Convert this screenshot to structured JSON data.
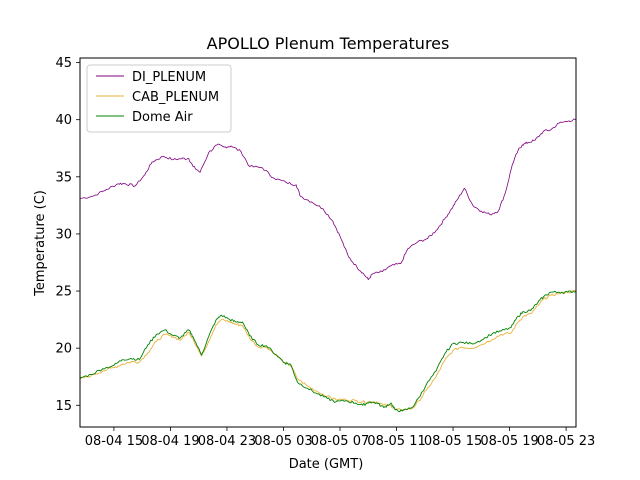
{
  "chart_data": {
    "type": "line",
    "title": "APOLLO Plenum Temperatures",
    "xlabel": "Date (GMT)",
    "ylabel": "Temperature (C)",
    "xlim": [
      12.6,
      47.7
    ],
    "ylim": [
      13.1,
      45.4
    ],
    "grid": false,
    "legend_position": "top-left",
    "x_unit": "hours since 08-04 00:00 GMT",
    "x_ticks": [
      15,
      19,
      23,
      27,
      31,
      35,
      39,
      43,
      47
    ],
    "x_tick_labels": [
      "08-04 15",
      "08-04 19",
      "08-04 23",
      "08-05 03",
      "08-05 07",
      "08-05 11",
      "08-05 15",
      "08-05 19",
      "08-05 23"
    ],
    "y_ticks": [
      15,
      20,
      25,
      30,
      35,
      40,
      45
    ],
    "y_tick_labels": [
      "15",
      "20",
      "25",
      "30",
      "35",
      "40",
      "45"
    ],
    "series": [
      {
        "name": "DI_PLENUM",
        "color": "#800080",
        "x": [
          12.6,
          13.5,
          14.5,
          15.3,
          15.8,
          16.5,
          17.2,
          17.7,
          18.5,
          19.2,
          19.8,
          20.3,
          20.6,
          21.1,
          21.7,
          22.3,
          22.8,
          23.3,
          24.0,
          24.6,
          25.5,
          26.3,
          27.2,
          27.9,
          28.2,
          29.0,
          29.8,
          30.5,
          31.0,
          31.6,
          32.2,
          32.6,
          33.0,
          33.3,
          34.0,
          34.6,
          35.3,
          35.8,
          36.5,
          37.2,
          37.8,
          38.4,
          38.9,
          39.3,
          39.8,
          40.4,
          41.0,
          41.6,
          42.2,
          42.7,
          43.2,
          43.6,
          43.9,
          44.3,
          44.8,
          45.4,
          45.9,
          46.5,
          47.2,
          47.7
        ],
        "values": [
          33.1,
          33.3,
          33.9,
          34.4,
          34.4,
          34.2,
          35.2,
          36.3,
          36.8,
          36.5,
          36.6,
          36.6,
          35.9,
          35.4,
          37.1,
          37.8,
          37.6,
          37.7,
          37.2,
          35.9,
          35.8,
          34.9,
          34.5,
          34.3,
          33.3,
          32.8,
          32.2,
          31.1,
          29.8,
          28.0,
          27.1,
          26.6,
          26.0,
          26.5,
          26.7,
          27.2,
          27.4,
          28.7,
          29.3,
          29.6,
          30.3,
          31.3,
          32.2,
          33.0,
          34.0,
          32.5,
          32.0,
          31.7,
          32.0,
          33.6,
          36.1,
          37.3,
          37.8,
          38.0,
          38.2,
          39.0,
          39.1,
          39.7,
          39.9,
          40.0
        ]
      },
      {
        "name": "CAB_PLENUM",
        "color": "#e8b23a",
        "x": [
          12.6,
          13.4,
          14.2,
          15.0,
          15.6,
          16.2,
          16.8,
          17.4,
          18.0,
          18.6,
          19.2,
          19.7,
          20.3,
          20.6,
          21.2,
          21.7,
          22.2,
          22.6,
          23.2,
          23.6,
          24.1,
          24.6,
          25.2,
          25.8,
          26.5,
          27.1,
          27.5,
          28.0,
          28.7,
          29.4,
          30.1,
          30.7,
          31.4,
          32.1,
          32.6,
          33.1,
          33.6,
          34.1,
          34.6,
          34.9,
          35.4,
          36.1,
          36.6,
          37.1,
          37.8,
          38.4,
          39.0,
          39.6,
          40.3,
          41.0,
          41.8,
          42.4,
          43.1,
          43.6,
          44.0,
          44.5,
          45.0,
          45.4,
          45.9,
          46.5,
          47.1,
          47.7
        ],
        "values": [
          17.3,
          17.6,
          18.0,
          18.3,
          18.6,
          18.8,
          18.8,
          19.6,
          20.6,
          21.2,
          21.0,
          20.7,
          21.4,
          20.8,
          19.3,
          20.6,
          22.0,
          22.5,
          22.3,
          22.1,
          22.0,
          20.9,
          20.1,
          20.1,
          19.4,
          18.7,
          18.5,
          17.3,
          16.7,
          16.2,
          15.8,
          15.5,
          15.5,
          15.4,
          15.3,
          15.3,
          15.3,
          15.0,
          15.0,
          14.6,
          14.6,
          14.7,
          15.4,
          16.3,
          17.5,
          18.9,
          19.8,
          20.1,
          20.0,
          20.3,
          20.8,
          21.2,
          21.3,
          22.3,
          22.8,
          23.0,
          23.7,
          24.3,
          24.6,
          24.8,
          24.9,
          25.0
        ]
      },
      {
        "name": "Dome Air",
        "color": "#008000",
        "x": [
          12.6,
          13.4,
          14.2,
          15.0,
          15.6,
          16.2,
          16.8,
          17.4,
          18.0,
          18.6,
          19.2,
          19.7,
          20.3,
          20.6,
          21.2,
          21.7,
          22.2,
          22.6,
          23.2,
          23.6,
          24.1,
          24.6,
          25.2,
          25.8,
          26.5,
          27.1,
          27.5,
          28.0,
          28.7,
          29.4,
          30.1,
          30.7,
          31.4,
          32.1,
          32.6,
          33.1,
          33.6,
          34.1,
          34.6,
          34.9,
          35.4,
          36.1,
          36.6,
          37.1,
          37.8,
          38.4,
          39.0,
          39.6,
          40.3,
          41.0,
          41.8,
          42.4,
          43.1,
          43.6,
          44.0,
          44.5,
          45.0,
          45.4,
          45.9,
          46.5,
          47.1,
          47.7
        ],
        "values": [
          17.4,
          17.7,
          18.2,
          18.5,
          19.0,
          19.1,
          19.0,
          20.3,
          21.2,
          21.6,
          21.1,
          20.9,
          21.6,
          21.0,
          19.4,
          21.0,
          22.4,
          22.9,
          22.5,
          22.3,
          22.3,
          21.1,
          20.3,
          20.2,
          19.4,
          18.7,
          18.6,
          17.0,
          16.5,
          16.0,
          15.6,
          15.3,
          15.4,
          15.2,
          15.0,
          15.3,
          15.2,
          14.8,
          15.2,
          14.6,
          14.5,
          14.8,
          15.7,
          16.8,
          18.0,
          19.5,
          20.4,
          20.5,
          20.4,
          20.7,
          21.3,
          21.5,
          21.8,
          22.8,
          23.2,
          23.3,
          24.0,
          24.5,
          24.9,
          24.9,
          24.9,
          25.0
        ]
      }
    ]
  }
}
